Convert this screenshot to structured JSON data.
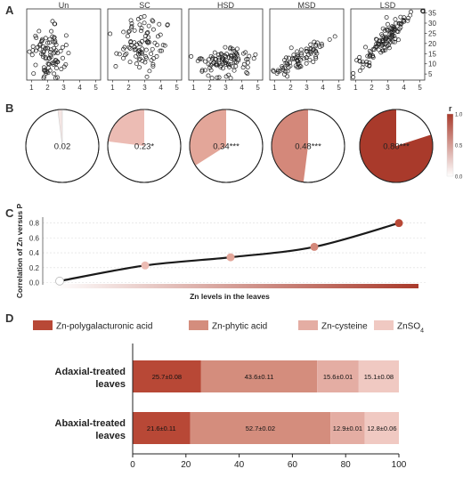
{
  "panels": {
    "A": {
      "letter": "A"
    },
    "B": {
      "letter": "B"
    },
    "C": {
      "letter": "C"
    },
    "D": {
      "letter": "D"
    }
  },
  "chart_data": [
    {
      "panel": "A",
      "type": "scatter",
      "facets": [
        "Un",
        "SC",
        "HSD",
        "MSD",
        "LSD"
      ],
      "x_ticks": [
        1,
        2,
        3,
        4,
        5
      ],
      "xlim": [
        0.7,
        5.3
      ],
      "y_ticks": [
        5,
        10,
        15,
        20,
        25,
        30,
        35
      ],
      "ylim": [
        2,
        37
      ],
      "y_axis_side": "right",
      "series": [
        {
          "name": "Un",
          "x_center": 2.0,
          "x_spread": 0.5,
          "y_center": 15,
          "y_spread": 7,
          "slope": 0.0,
          "n": 90
        },
        {
          "name": "SC",
          "x_center": 2.8,
          "x_spread": 0.8,
          "y_center": 20,
          "y_spread": 7,
          "slope": 0.2,
          "n": 90
        },
        {
          "name": "HSD",
          "x_center": 2.9,
          "x_spread": 0.8,
          "y_center": 11,
          "y_spread": 3.5,
          "slope": 0.8,
          "n": 100
        },
        {
          "name": "MSD",
          "x_center": 2.6,
          "x_spread": 0.8,
          "y_center": 13,
          "y_spread": 3,
          "slope": 4.5,
          "n": 80
        },
        {
          "name": "LSD",
          "x_center": 2.9,
          "x_spread": 0.9,
          "y_center": 22,
          "y_spread": 3,
          "slope": 7.5,
          "n": 120
        }
      ]
    },
    {
      "panel": "B",
      "type": "pie",
      "slices": [
        {
          "value": 0.02,
          "label": "0.02",
          "color": "#f5e6e4"
        },
        {
          "value": 0.23,
          "label": "0.23*",
          "color": "#ecbcb4"
        },
        {
          "value": 0.34,
          "label": "0.34***",
          "color": "#e3a699"
        },
        {
          "value": 0.48,
          "label": "0.48***",
          "color": "#d4887a"
        },
        {
          "value": 0.8,
          "label": "0.80***",
          "color": "#a93a2b"
        }
      ],
      "colorbar": {
        "title": "r",
        "ticks": [
          0.0,
          0.5,
          1.0
        ],
        "tick_labels": [
          "0.0",
          "0.5",
          "1.0"
        ],
        "low_color": "#ffffff",
        "high_color": "#a93a2b"
      }
    },
    {
      "panel": "C",
      "type": "line",
      "ylabel": "Correlation of Zn versus P",
      "xlabel": "Zn levels in the leaves",
      "ylim": [
        -0.03,
        0.88
      ],
      "y_ticks": [
        0.0,
        0.2,
        0.4,
        0.6,
        0.8
      ],
      "y_tick_labels": [
        "0.0",
        "0.2",
        "0.4",
        "0.6",
        "0.8"
      ],
      "points": [
        {
          "x": 1,
          "y": 0.02,
          "color": "#ffffff"
        },
        {
          "x": 2,
          "y": 0.23,
          "color": "#ecbcb4"
        },
        {
          "x": 3,
          "y": 0.34,
          "color": "#e3a699"
        },
        {
          "x": 4,
          "y": 0.48,
          "color": "#d4887a"
        },
        {
          "x": 5,
          "y": 0.8,
          "color": "#b84836"
        }
      ],
      "gradient": {
        "from": "#ffffff",
        "to": "#a93a2b"
      }
    },
    {
      "panel": "D",
      "type": "bar",
      "orientation": "horizontal",
      "stacked": true,
      "categories": [
        "Adaxial-treated leaves",
        "Abaxial-treated leaves"
      ],
      "xlim": [
        0,
        100
      ],
      "x_ticks": [
        0,
        20,
        40,
        60,
        80,
        100
      ],
      "series": [
        {
          "name": "Zn-polygalacturonic acid",
          "color": "#b84836",
          "values": [
            25.7,
            21.6
          ],
          "labels": [
            "25.7±0.08",
            "21.6±0.11"
          ]
        },
        {
          "name": "Zn-phytic acid",
          "color": "#d48d7d",
          "values": [
            43.6,
            52.7
          ],
          "labels": [
            "43.6±0.11",
            "52.7±0.02"
          ]
        },
        {
          "name": "Zn-cysteine",
          "color": "#e4ada3",
          "values": [
            15.6,
            12.9
          ],
          "labels": [
            "15.6±0.01",
            "12.9±0.01"
          ]
        },
        {
          "name": "ZnSO",
          "name_subscript": "4",
          "color": "#f0c9c2",
          "values": [
            15.1,
            12.8
          ],
          "labels": [
            "15.1±0.08",
            "12.8±0.06"
          ]
        }
      ],
      "category_lines": [
        [
          "Adaxial-treated",
          "leaves"
        ],
        [
          "Abaxial-treated",
          "leaves"
        ]
      ]
    }
  ]
}
